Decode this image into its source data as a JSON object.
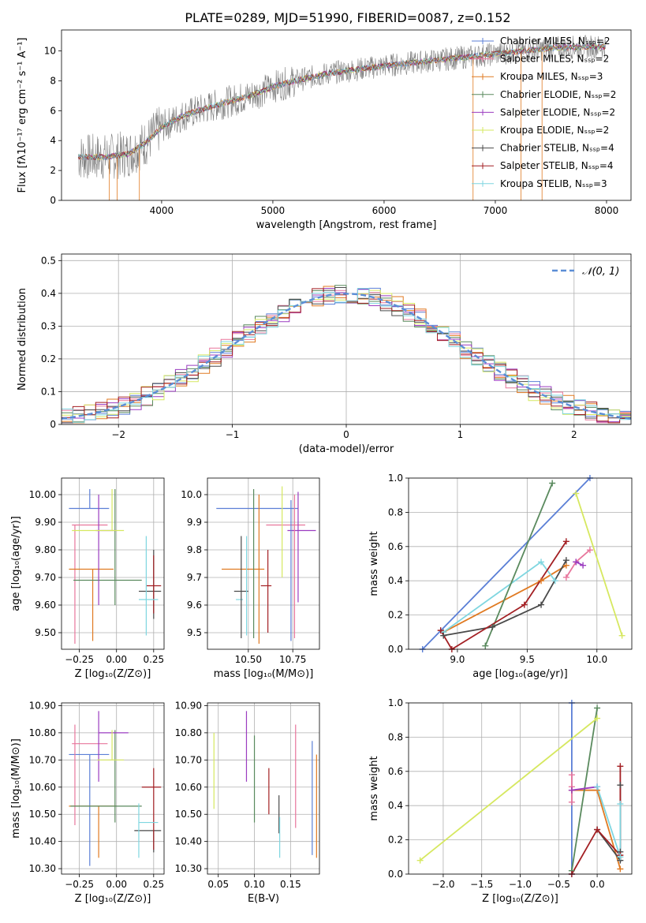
{
  "figure_title": "PLATE=0289, MJD=51990, FIBERID=0087, z=0.152",
  "model_colors": {
    "Chabrier MILES": "#5b7fd6",
    "Salpeter MILES": "#e8769c",
    "Kroupa MILES": "#e07a22",
    "Chabrier ELODIE": "#5a8a5e",
    "Salpeter ELODIE": "#9b3cc0",
    "Kroupa ELODIE": "#d6e860",
    "Chabrier STELIB": "#4a4a4a",
    "Salpeter STELIB": "#a31f23",
    "Kroupa STELIB": "#7fd6e0"
  },
  "chart_data": [
    {
      "id": "spectrum",
      "type": "line",
      "xlabel": "wavelength [Angstrom, rest frame]",
      "ylabel": "Flux [fλ10⁻¹⁷ erg cm⁻² s⁻¹ A⁻¹]",
      "xlim": [
        3100,
        8220
      ],
      "ylim": [
        0,
        11.4
      ],
      "xticks": [
        4000,
        5000,
        6000,
        7000,
        8000
      ],
      "yticks": [
        0,
        2,
        4,
        6,
        8,
        10
      ],
      "data_range": [
        3250,
        8000
      ],
      "data_color": "#808080",
      "legend_loc": "upper right",
      "legend": [
        "Chabrier MILES, Nₛₛₚ=2",
        "Salpeter MILES, Nₛₛₚ=2",
        "Kroupa MILES, Nₛₛₚ=3",
        "Chabrier ELODIE, Nₛₛₚ=2",
        "Salpeter ELODIE, Nₛₛₚ=2",
        "Kroupa ELODIE, Nₛₛₚ=2",
        "Chabrier STELIB, Nₛₛₚ=4",
        "Salpeter STELIB, Nₛₛₚ=4",
        "Kroupa STELIB, Nₛₛₚ=3"
      ],
      "legend_models": [
        "Chabrier MILES",
        "Salpeter MILES",
        "Kroupa MILES",
        "Chabrier ELODIE",
        "Salpeter ELODIE",
        "Kroupa ELODIE",
        "Chabrier STELIB",
        "Salpeter STELIB",
        "Kroupa STELIB"
      ],
      "continuum": [
        [
          3250,
          2.9
        ],
        [
          3500,
          2.9
        ],
        [
          3700,
          3.1
        ],
        [
          3850,
          3.8
        ],
        [
          4000,
          4.9
        ],
        [
          4200,
          5.7
        ],
        [
          4500,
          6.4
        ],
        [
          4800,
          7.0
        ],
        [
          5000,
          7.6
        ],
        [
          5200,
          8.0
        ],
        [
          5500,
          8.5
        ],
        [
          6000,
          9.0
        ],
        [
          6500,
          9.4
        ],
        [
          7000,
          9.8
        ],
        [
          7500,
          10.2
        ],
        [
          8000,
          10.3
        ]
      ],
      "grid": false
    },
    {
      "id": "residuals",
      "type": "histogram",
      "xlabel": "(data-model)/error",
      "ylabel": "Normed distribution",
      "xlim": [
        -2.5,
        2.5
      ],
      "ylim": [
        0,
        0.52
      ],
      "xticks": [
        -2,
        -1,
        0,
        1,
        2
      ],
      "yticks": [
        0.0,
        0.1,
        0.2,
        0.3,
        0.4,
        0.5
      ],
      "legend": [
        "𝒩(0, 1)"
      ],
      "legend_loc": "upper right",
      "normal_color": "#5b8ed6",
      "grid": true
    },
    {
      "id": "age_vs_Z",
      "type": "errorbar",
      "xlabel": "Z [log₁₀(Z/Z⊙)]",
      "ylabel": "age  [log₁₀(age/yr)]",
      "xlim": [
        -0.37,
        0.32
      ],
      "ylim": [
        9.44,
        10.06
      ],
      "xticks": [
        -0.25,
        0.0,
        0.25
      ],
      "yticks": [
        9.5,
        9.6,
        9.7,
        9.8,
        9.9,
        10.0
      ],
      "grid": true,
      "points": [
        {
          "model": "Chabrier MILES",
          "x": -0.18,
          "xerr": [
            0.14,
            0.13
          ],
          "y": 9.95,
          "yerr": [
            0.0,
            0.07
          ]
        },
        {
          "model": "Salpeter MILES",
          "x": -0.28,
          "xerr": [
            0.02,
            0.22
          ],
          "y": 9.89,
          "yerr": [
            0.43,
            0.0
          ]
        },
        {
          "model": "Kroupa MILES",
          "x": -0.16,
          "xerr": [
            0.16,
            0.14
          ],
          "y": 9.73,
          "yerr": [
            0.26,
            0.0
          ]
        },
        {
          "model": "Chabrier ELODIE",
          "x": -0.01,
          "xerr": [
            0.28,
            0.18
          ],
          "y": 9.69,
          "yerr": [
            0.09,
            0.33
          ]
        },
        {
          "model": "Salpeter ELODIE",
          "x": -0.12,
          "xerr": [
            0.02,
            0.12
          ],
          "y": 9.87,
          "yerr": [
            0.27,
            0.13
          ]
        },
        {
          "model": "Kroupa ELODIE",
          "x": -0.03,
          "xerr": [
            0.27,
            0.08
          ],
          "y": 9.87,
          "yerr": [
            0.0,
            0.15
          ]
        },
        {
          "model": "Chabrier STELIB",
          "x": 0.25,
          "xerr": [
            0.1,
            0.05
          ],
          "y": 9.65,
          "yerr": [
            0.1,
            0.15
          ]
        },
        {
          "model": "Salpeter STELIB",
          "x": 0.25,
          "xerr": [
            0.05,
            0.05
          ],
          "y": 9.67,
          "yerr": [
            0.1,
            0.11
          ]
        },
        {
          "model": "Kroupa STELIB",
          "x": 0.2,
          "xerr": [
            0.05,
            0.08
          ],
          "y": 9.62,
          "yerr": [
            0.13,
            0.23
          ]
        }
      ]
    },
    {
      "id": "age_vs_mass",
      "type": "errorbar",
      "xlabel": "mass [log₁₀(M/M⊙)]",
      "ylabel": "",
      "xlim": [
        10.27,
        10.9
      ],
      "ylim": [
        9.44,
        10.06
      ],
      "xticks": [
        10.5,
        10.75
      ],
      "yticks": [
        9.5,
        9.6,
        9.7,
        9.8,
        9.9,
        10.0
      ],
      "grid": true,
      "points": [
        {
          "model": "Chabrier MILES",
          "x": 10.6,
          "xerr": [
            0.28,
            0.18
          ],
          "y": 9.95,
          "yerr": [
            0.0,
            0.0
          ]
        },
        {
          "model": "Salpeter MILES",
          "x": 10.71,
          "xerr": [
            0.11,
            0.11
          ],
          "y": 9.89,
          "yerr": [
            0.0,
            0.0
          ]
        },
        {
          "model": "Kroupa MILES",
          "x": 10.47,
          "xerr": [
            0.12,
            0.12
          ],
          "y": 9.73,
          "yerr": [
            0.0,
            0.0
          ]
        },
        {
          "model": "Chabrier ELODIE",
          "x": 10.53,
          "xerr": [
            0.0,
            0.0
          ],
          "y": 9.7,
          "yerr": [
            0.22,
            0.32
          ]
        },
        {
          "model": "Salpeter ELODIE",
          "x": 10.82,
          "xerr": [
            0.1,
            0.06
          ],
          "y": 9.87,
          "yerr": [
            0.0,
            0.0
          ]
        },
        {
          "model": "Kroupa ELODIE",
          "x": 10.69,
          "xerr": [
            0.0,
            0.0
          ],
          "y": 9.7,
          "yerr": [
            0.0,
            0.33
          ]
        },
        {
          "model": "Chabrier STELIB",
          "x": 10.47,
          "xerr": [
            0.05,
            0.03
          ],
          "y": 9.65,
          "yerr": [
            0.0,
            0.0
          ]
        },
        {
          "model": "Salpeter STELIB",
          "x": 10.6,
          "xerr": [
            0.03,
            0.03
          ],
          "y": 9.67,
          "yerr": [
            0.0,
            0.0
          ]
        },
        {
          "model": "Kroupa STELIB",
          "x": 10.47,
          "xerr": [
            0.04,
            0.0
          ],
          "y": 9.62,
          "yerr": [
            0.0,
            0.0
          ]
        }
      ],
      "extra_segments": [
        {
          "model": "Chabrier MILES",
          "x": [
            10.74,
            10.74
          ],
          "y": [
            9.47,
            9.98
          ]
        },
        {
          "model": "Salpeter MILES",
          "x": [
            10.76,
            10.76
          ],
          "y": [
            9.48,
            10.0
          ]
        },
        {
          "model": "Kroupa MILES",
          "x": [
            10.56,
            10.56
          ],
          "y": [
            9.46,
            10.0
          ]
        },
        {
          "model": "Salpeter ELODIE",
          "x": [
            10.78,
            10.78
          ],
          "y": [
            9.61,
            10.01
          ]
        },
        {
          "model": "Chabrier STELIB",
          "x": [
            10.46,
            10.46
          ],
          "y": [
            9.48,
            9.85
          ]
        },
        {
          "model": "Salpeter STELIB",
          "x": [
            10.61,
            10.61
          ],
          "y": [
            9.5,
            9.8
          ]
        },
        {
          "model": "Kroupa STELIB",
          "x": [
            10.49,
            10.49
          ],
          "y": [
            9.49,
            9.85
          ]
        }
      ]
    },
    {
      "id": "mass_weight_vs_age",
      "type": "line",
      "xlabel": "age  [log₁₀(age/yr)]",
      "ylabel": "mass weight",
      "xlim": [
        8.65,
        10.25
      ],
      "ylim": [
        0,
        1.0
      ],
      "xticks": [
        9.0,
        9.5,
        10.0
      ],
      "yticks": [
        0.0,
        0.2,
        0.4,
        0.6,
        0.8,
        1.0
      ],
      "grid": true,
      "series": [
        {
          "model": "Chabrier MILES",
          "x": [
            8.75,
            9.95
          ],
          "y": [
            0.0,
            1.0
          ]
        },
        {
          "model": "Kroupa MILES",
          "x": [
            8.9,
            9.6,
            9.78
          ],
          "y": [
            0.1,
            0.4,
            0.49
          ]
        },
        {
          "model": "Kroupa STELIB",
          "x": [
            8.9,
            9.6,
            9.7
          ],
          "y": [
            0.1,
            0.51,
            0.4
          ]
        },
        {
          "model": "Salpeter MILES",
          "x": [
            9.78,
            9.85,
            9.95
          ],
          "y": [
            0.42,
            0.51,
            0.58
          ]
        },
        {
          "model": "Salpeter ELODIE",
          "x": [
            9.85,
            9.9
          ],
          "y": [
            0.51,
            0.49
          ]
        },
        {
          "model": "Chabrier ELODIE",
          "x": [
            9.2,
            9.68
          ],
          "y": [
            0.02,
            0.97
          ]
        },
        {
          "model": "Kroupa ELODIE",
          "x": [
            9.85,
            10.18
          ],
          "y": [
            0.91,
            0.08
          ]
        },
        {
          "model": "Chabrier STELIB",
          "x": [
            8.9,
            9.25,
            9.6,
            9.78
          ],
          "y": [
            0.08,
            0.13,
            0.26,
            0.52
          ]
        },
        {
          "model": "Salpeter STELIB",
          "x": [
            8.88,
            8.96,
            9.48,
            9.78
          ],
          "y": [
            0.11,
            0.0,
            0.26,
            0.63
          ]
        }
      ]
    },
    {
      "id": "mass_vs_Z",
      "type": "errorbar",
      "xlabel": "Z [log₁₀(Z/Z⊙)]",
      "ylabel": "mass [log₁₀(M/M⊙)]",
      "xlim": [
        -0.37,
        0.32
      ],
      "ylim": [
        10.28,
        10.91
      ],
      "xticks": [
        -0.25,
        0.0,
        0.25
      ],
      "yticks": [
        10.3,
        10.4,
        10.5,
        10.6,
        10.7,
        10.8,
        10.9
      ],
      "grid": true,
      "points": [
        {
          "model": "Chabrier MILES",
          "x": -0.18,
          "xerr": [
            0.14,
            0.13
          ],
          "y": 10.72,
          "yerr": [
            0.41,
            0.0
          ]
        },
        {
          "model": "Salpeter MILES",
          "x": -0.28,
          "xerr": [
            0.02,
            0.22
          ],
          "y": 10.76,
          "yerr": [
            0.3,
            0.07
          ]
        },
        {
          "model": "Kroupa MILES",
          "x": -0.12,
          "xerr": [
            0.2,
            0.12
          ],
          "y": 10.53,
          "yerr": [
            0.19,
            0.0
          ]
        },
        {
          "model": "Chabrier ELODIE",
          "x": -0.01,
          "xerr": [
            0.3,
            0.18
          ],
          "y": 10.53,
          "yerr": [
            0.06,
            0.28
          ]
        },
        {
          "model": "Salpeter ELODIE",
          "x": -0.12,
          "xerr": [
            0.0,
            0.2
          ],
          "y": 10.8,
          "yerr": [
            0.18,
            0.08
          ]
        },
        {
          "model": "Kroupa ELODIE",
          "x": -0.03,
          "xerr": [
            0.1,
            0.08
          ],
          "y": 10.7,
          "yerr": [
            0.0,
            0.11
          ]
        },
        {
          "model": "Chabrier STELIB",
          "x": 0.25,
          "xerr": [
            0.13,
            0.05
          ],
          "y": 10.44,
          "yerr": [
            0.08,
            0.0
          ]
        },
        {
          "model": "Salpeter STELIB",
          "x": 0.25,
          "xerr": [
            0.08,
            0.05
          ],
          "y": 10.6,
          "yerr": [
            0.23,
            0.07
          ]
        },
        {
          "model": "Kroupa STELIB",
          "x": 0.15,
          "xerr": [
            0.0,
            0.13
          ],
          "y": 10.47,
          "yerr": [
            0.13,
            0.07
          ]
        }
      ]
    },
    {
      "id": "mass_vs_EBV",
      "type": "errorbar",
      "xlabel": "E(B-V)",
      "ylabel": "",
      "xlim": [
        0.035,
        0.19
      ],
      "ylim": [
        10.28,
        10.91
      ],
      "xticks": [
        0.05,
        0.1,
        0.15
      ],
      "yticks": [
        10.3,
        10.4,
        10.5,
        10.6,
        10.7,
        10.8,
        10.9
      ],
      "grid": true,
      "points": [
        {
          "model": "Kroupa ELODIE",
          "x": 0.044,
          "xerr": [
            0.0,
            0.0
          ],
          "y": 10.66,
          "yerr": [
            0.14,
            0.14
          ]
        },
        {
          "model": "Salpeter ELODIE",
          "x": 0.089,
          "xerr": [
            0.0,
            0.0
          ],
          "y": 10.75,
          "yerr": [
            0.13,
            0.13
          ]
        },
        {
          "model": "Chabrier ELODIE",
          "x": 0.1,
          "xerr": [
            0.0,
            0.0
          ],
          "y": 10.63,
          "yerr": [
            0.16,
            0.16
          ]
        },
        {
          "model": "Salpeter STELIB",
          "x": 0.12,
          "xerr": [
            0.0,
            0.0
          ],
          "y": 10.58,
          "yerr": [
            0.08,
            0.09
          ]
        },
        {
          "model": "Chabrier STELIB",
          "x": 0.134,
          "xerr": [
            0.0,
            0.0
          ],
          "y": 10.5,
          "yerr": [
            0.07,
            0.07
          ]
        },
        {
          "model": "Kroupa STELIB",
          "x": 0.135,
          "xerr": [
            0.0,
            0.0
          ],
          "y": 10.42,
          "yerr": [
            0.08,
            0.07
          ]
        },
        {
          "model": "Salpeter MILES",
          "x": 0.157,
          "xerr": [
            0.0,
            0.0
          ],
          "y": 10.64,
          "yerr": [
            0.19,
            0.19
          ]
        },
        {
          "model": "Chabrier MILES",
          "x": 0.18,
          "xerr": [
            0.0,
            0.0
          ],
          "y": 10.56,
          "yerr": [
            0.21,
            0.21
          ]
        },
        {
          "model": "Kroupa MILES",
          "x": 0.186,
          "xerr": [
            0.0,
            0.0
          ],
          "y": 10.53,
          "yerr": [
            0.19,
            0.19
          ]
        }
      ]
    },
    {
      "id": "mass_weight_vs_Z",
      "type": "line",
      "xlabel": "Z [log₁₀(Z/Z⊙)]",
      "ylabel": "mass weight",
      "xlim": [
        -2.45,
        0.45
      ],
      "ylim": [
        0,
        1.0
      ],
      "xticks": [
        -2.0,
        -1.5,
        -1.0,
        -0.5,
        0.0
      ],
      "yticks": [
        0.0,
        0.2,
        0.4,
        0.6,
        0.8,
        1.0
      ],
      "grid": true,
      "series": [
        {
          "model": "Chabrier MILES",
          "x": [
            -0.33,
            -0.33
          ],
          "y": [
            0.0,
            1.0
          ]
        },
        {
          "model": "Salpeter MILES",
          "x": [
            -0.33,
            -0.33,
            -0.33
          ],
          "y": [
            0.42,
            0.51,
            0.58
          ]
        },
        {
          "model": "Kroupa MILES",
          "x": [
            -0.33,
            0.0,
            0.3
          ],
          "y": [
            0.49,
            0.49,
            0.03
          ]
        },
        {
          "model": "Chabrier ELODIE",
          "x": [
            -0.33,
            0.0
          ],
          "y": [
            0.02,
            0.97
          ]
        },
        {
          "model": "Salpeter ELODIE",
          "x": [
            -0.33,
            0.0
          ],
          "y": [
            0.49,
            0.51
          ]
        },
        {
          "model": "Kroupa ELODIE",
          "x": [
            -2.3,
            0.0
          ],
          "y": [
            0.08,
            0.91
          ]
        },
        {
          "model": "Chabrier STELIB",
          "x": [
            0.0,
            0.3,
            0.3,
            0.3
          ],
          "y": [
            0.26,
            0.08,
            0.13,
            0.52
          ]
        },
        {
          "model": "Salpeter STELIB",
          "x": [
            -0.33,
            0.0,
            0.3,
            0.3
          ],
          "y": [
            0.0,
            0.26,
            0.11,
            0.63
          ]
        },
        {
          "model": "Kroupa STELIB",
          "x": [
            0.0,
            0.3,
            0.3
          ],
          "y": [
            0.51,
            0.1,
            0.41
          ]
        }
      ]
    }
  ]
}
